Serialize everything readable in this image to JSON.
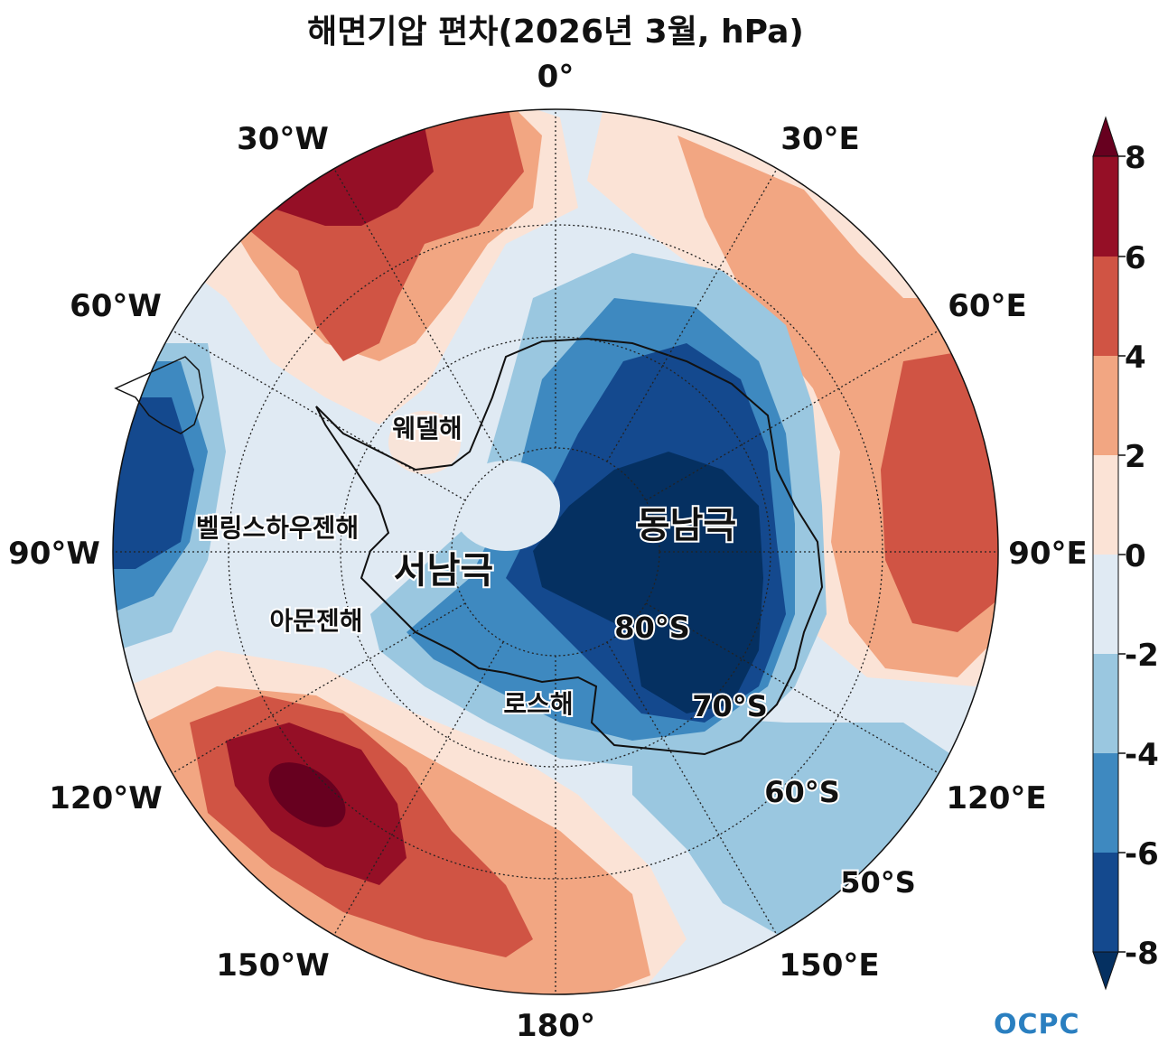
{
  "title": "해면기압 편차(2026년 3월, hPa)",
  "longitude_labels": [
    "0°",
    "30°E",
    "60°E",
    "90°E",
    "120°E",
    "150°E",
    "180°",
    "150°W",
    "120°W",
    "90°W",
    "60°W",
    "30°W"
  ],
  "latitude_labels": [
    "80°S",
    "70°S",
    "60°S",
    "50°S"
  ],
  "regions": {
    "weddell": "웨델해",
    "bellingshausen": "벨링스하우젠해",
    "amundsen": "아문젠해",
    "ross": "로스해",
    "west_antarctica": "서남극",
    "east_antarctica": "동남극"
  },
  "colorbar": {
    "ticks": [
      "8",
      "6",
      "4",
      "2",
      "0",
      "-2",
      "-4",
      "-6",
      "-8"
    ],
    "colors": [
      "#67001f",
      "#950f26",
      "#d05444",
      "#f2a682",
      "#fbe3d6",
      "#e0eaf3",
      "#9ac7e0",
      "#3e89c0",
      "#14498e",
      "#053061"
    ]
  },
  "logo": "OCPC"
}
